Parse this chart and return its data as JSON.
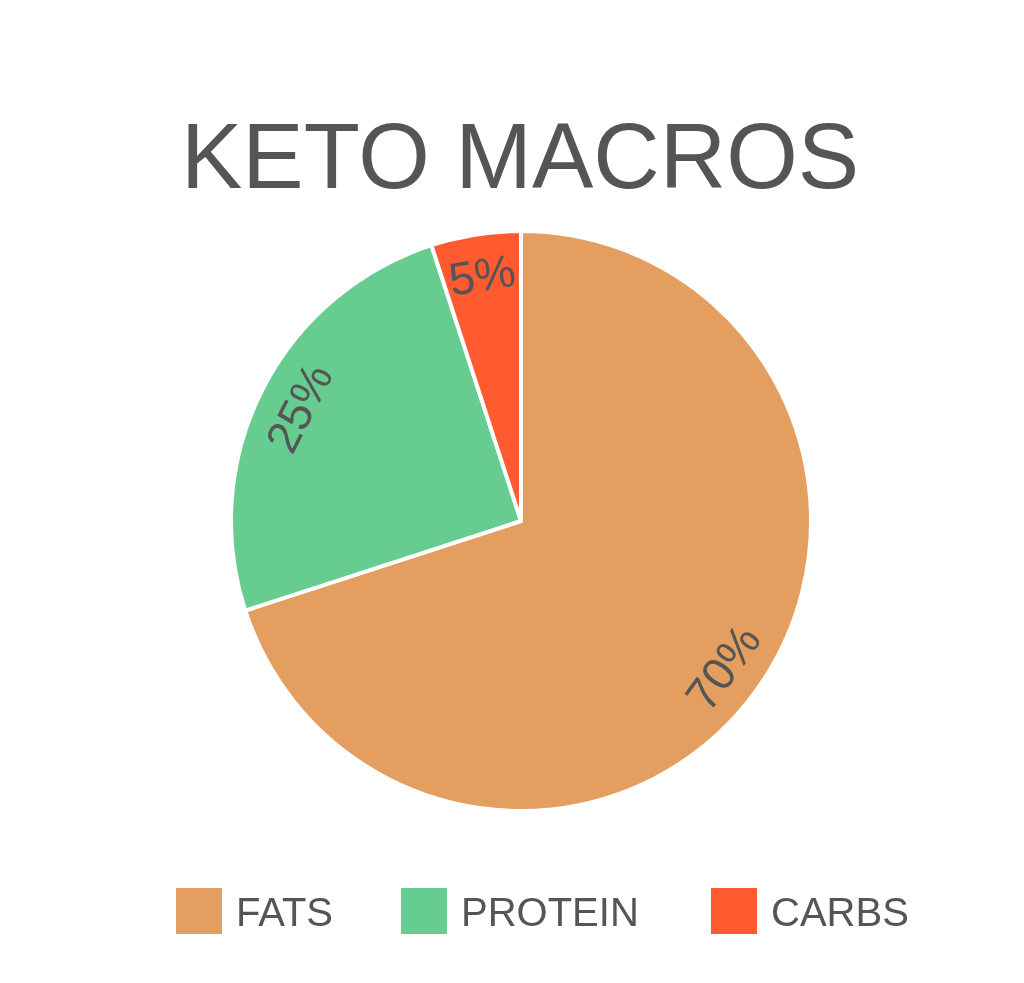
{
  "chart_data": {
    "type": "pie",
    "title": "KETO MACROS",
    "categories": [
      "FATS",
      "PROTEIN",
      "CARBS"
    ],
    "values": [
      70,
      25,
      5
    ],
    "colors": [
      "#e49e5f",
      "#66cc90",
      "#ff5a30"
    ],
    "value_labels": [
      "70%",
      "25%",
      "5%"
    ],
    "legend": "bottom"
  }
}
